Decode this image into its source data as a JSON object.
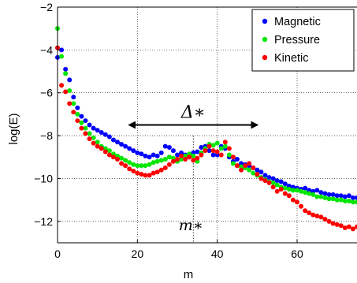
{
  "chart_data": {
    "type": "scatter",
    "title": "",
    "xlabel": "m",
    "ylabel": "log(E)",
    "xlim": [
      0,
      75
    ],
    "ylim": [
      -13,
      -2
    ],
    "x_ticks": [
      0,
      20,
      40,
      60
    ],
    "x_tick_labels": [
      "0",
      "20",
      "40",
      "60"
    ],
    "y_ticks": [
      -12,
      -10,
      -8,
      -6,
      -4,
      -2
    ],
    "y_tick_labels": [
      "−12",
      "−10",
      "−8",
      "−6",
      "−4",
      "−2"
    ],
    "grid": true,
    "legend_position": "top-right",
    "series": [
      {
        "name": "Magnetic",
        "color": "#0000ff",
        "x": [
          0,
          1,
          2,
          3,
          4,
          5,
          6,
          7,
          8,
          9,
          10,
          11,
          12,
          13,
          14,
          15,
          16,
          17,
          18,
          19,
          20,
          21,
          22,
          23,
          24,
          25,
          26,
          27,
          28,
          29,
          30,
          31,
          32,
          33,
          34,
          35,
          36,
          37,
          38,
          39,
          40,
          41,
          42,
          43,
          44,
          45,
          46,
          47,
          48,
          49,
          50,
          51,
          52,
          53,
          54,
          55,
          56,
          57,
          58,
          59,
          60,
          61,
          62,
          63,
          64,
          65,
          66,
          67,
          68,
          69,
          70,
          71,
          72,
          73,
          74,
          75
        ],
        "values": [
          -4.35,
          -4.0,
          -4.9,
          -5.4,
          -6.2,
          -6.7,
          -7.1,
          -7.3,
          -7.5,
          -7.65,
          -7.75,
          -7.85,
          -7.95,
          -8.05,
          -8.2,
          -8.3,
          -8.4,
          -8.5,
          -8.6,
          -8.7,
          -8.8,
          -8.85,
          -8.95,
          -9.0,
          -8.9,
          -8.95,
          -8.8,
          -8.5,
          -8.55,
          -8.7,
          -8.9,
          -8.8,
          -8.9,
          -9.0,
          -8.8,
          -8.75,
          -8.55,
          -8.5,
          -8.7,
          -8.9,
          -8.9,
          -8.5,
          -8.6,
          -9.0,
          -9.2,
          -9.1,
          -9.3,
          -9.35,
          -9.4,
          -9.5,
          -9.6,
          -9.7,
          -9.85,
          -9.95,
          -10.0,
          -10.1,
          -10.15,
          -10.25,
          -10.35,
          -10.4,
          -10.45,
          -10.5,
          -10.45,
          -10.55,
          -10.6,
          -10.55,
          -10.65,
          -10.7,
          -10.75,
          -10.75,
          -10.8,
          -10.8,
          -10.85,
          -10.8,
          -10.9,
          -10.9
        ]
      },
      {
        "name": "Pressure",
        "color": "#00e600",
        "x": [
          0,
          1,
          2,
          3,
          4,
          5,
          6,
          7,
          8,
          9,
          10,
          11,
          12,
          13,
          14,
          15,
          16,
          17,
          18,
          19,
          20,
          21,
          22,
          23,
          24,
          25,
          26,
          27,
          28,
          29,
          30,
          31,
          32,
          33,
          34,
          35,
          36,
          37,
          38,
          39,
          40,
          41,
          42,
          43,
          44,
          45,
          46,
          47,
          48,
          49,
          50,
          51,
          52,
          53,
          54,
          55,
          56,
          57,
          58,
          59,
          60,
          61,
          62,
          63,
          64,
          65,
          66,
          67,
          68,
          69,
          70,
          71,
          72,
          73,
          74,
          75
        ],
        "values": [
          -3.0,
          -4.3,
          -5.1,
          -5.9,
          -6.5,
          -7.0,
          -7.4,
          -7.65,
          -7.9,
          -8.1,
          -8.3,
          -8.5,
          -8.6,
          -8.7,
          -8.85,
          -8.95,
          -9.05,
          -9.15,
          -9.25,
          -9.35,
          -9.4,
          -9.4,
          -9.4,
          -9.35,
          -9.25,
          -9.2,
          -9.15,
          -9.1,
          -9.0,
          -9.05,
          -9.2,
          -9.1,
          -8.95,
          -8.85,
          -8.95,
          -9.2,
          -8.8,
          -8.6,
          -8.4,
          -8.45,
          -8.35,
          -8.6,
          -8.5,
          -8.9,
          -9.3,
          -9.4,
          -9.45,
          -9.5,
          -9.6,
          -9.75,
          -9.85,
          -9.95,
          -10.05,
          -10.15,
          -10.2,
          -10.3,
          -10.4,
          -10.45,
          -10.5,
          -10.55,
          -10.55,
          -10.6,
          -10.65,
          -10.7,
          -10.75,
          -10.85,
          -10.85,
          -10.9,
          -10.95,
          -10.95,
          -11.0,
          -11.0,
          -11.05,
          -11.05,
          -11.1,
          -11.1
        ]
      },
      {
        "name": "Kinetic",
        "color": "#ff0000",
        "x": [
          0,
          1,
          2,
          3,
          4,
          5,
          6,
          7,
          8,
          9,
          10,
          11,
          12,
          13,
          14,
          15,
          16,
          17,
          18,
          19,
          20,
          21,
          22,
          23,
          24,
          25,
          26,
          27,
          28,
          29,
          30,
          31,
          32,
          33,
          34,
          35,
          36,
          37,
          38,
          39,
          40,
          41,
          42,
          43,
          44,
          45,
          46,
          47,
          48,
          49,
          50,
          51,
          52,
          53,
          54,
          55,
          56,
          57,
          58,
          59,
          60,
          61,
          62,
          63,
          64,
          65,
          66,
          67,
          68,
          69,
          70,
          71,
          72,
          73,
          74,
          75
        ],
        "values": [
          -3.9,
          -5.65,
          -5.95,
          -6.5,
          -6.9,
          -7.3,
          -7.65,
          -7.9,
          -8.15,
          -8.35,
          -8.5,
          -8.6,
          -8.75,
          -8.9,
          -9.0,
          -9.1,
          -9.3,
          -9.4,
          -9.55,
          -9.65,
          -9.75,
          -9.8,
          -9.85,
          -9.85,
          -9.75,
          -9.7,
          -9.6,
          -9.5,
          -9.35,
          -9.2,
          -9.1,
          -8.95,
          -9.1,
          -9.0,
          -9.15,
          -9.05,
          -8.9,
          -8.7,
          -8.5,
          -8.7,
          -8.75,
          -8.9,
          -8.3,
          -8.6,
          -9.0,
          -9.4,
          -9.6,
          -9.4,
          -9.3,
          -9.5,
          -9.8,
          -10.0,
          -10.1,
          -10.2,
          -10.4,
          -10.6,
          -10.5,
          -10.7,
          -10.8,
          -11.0,
          -11.1,
          -11.3,
          -11.5,
          -11.6,
          -11.7,
          -11.75,
          -11.8,
          -11.9,
          -12.0,
          -12.1,
          -12.15,
          -12.2,
          -12.3,
          -12.25,
          -12.35,
          -12.25
        ]
      }
    ],
    "annotations": [
      {
        "text": "Δ∗",
        "kind": "double-arrow",
        "x_range": [
          18,
          50
        ],
        "y": -7.5
      },
      {
        "text": "m∗",
        "kind": "dotted-vertical-line",
        "x": 34,
        "y_range": [
          -13,
          -8.0
        ]
      }
    ]
  }
}
